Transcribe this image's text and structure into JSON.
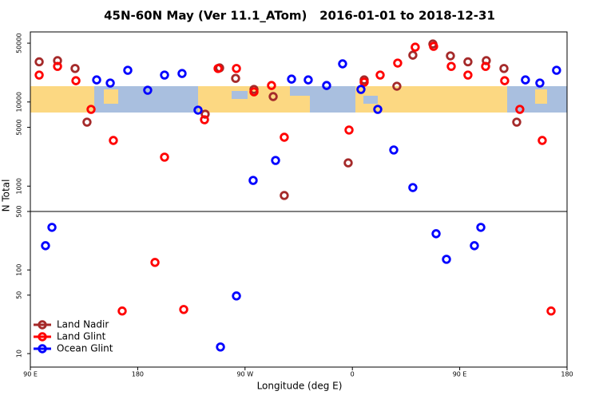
{
  "chart_data": [
    {
      "type": "scatter",
      "title": "45N-60N May (Ver 11.1_ATom)   2016-01-01 to 2018-12-31",
      "y_label": "N Total",
      "log_y": true,
      "xlim": [
        90,
        540
      ],
      "ylim": [
        500,
        68000
      ],
      "yticks": [
        1000,
        5000,
        10000,
        50000
      ],
      "series": [
        {
          "color": "#a52a2a",
          "x": [
            97.4,
            112.8,
            127.5,
            137.5,
            236.6,
            248.7,
            262.1,
            277.5,
            293.6,
            302.9,
            356.5,
            369.9,
            397.3,
            410.7,
            427.5,
            442.2,
            456.9,
            472.3,
            487.1,
            497.8
          ],
          "values": [
            30000,
            31000,
            25000,
            5760,
            7170,
            25400,
            19100,
            14100,
            11600,
            774,
            1890,
            18300,
            15400,
            36000,
            48900,
            35300,
            30000,
            31000,
            25000,
            5760
          ]
        },
        {
          "color": "#ff0000",
          "x": [
            97.4,
            112.8,
            128.2,
            140.9,
            159.6,
            202.5,
            236,
            247.4,
            262.8,
            277.5,
            292.2,
            302.9,
            357.2,
            369.9,
            383.3,
            398,
            412.7,
            428.1,
            442.9,
            456.9,
            471.7,
            487.7,
            500.4,
            519.2
          ],
          "values": [
            20900,
            26500,
            17900,
            8170,
            3490,
            2210,
            6150,
            25000,
            25000,
            13200,
            15700,
            3810,
            4640,
            17200,
            20900,
            29000,
            44800,
            45800,
            26500,
            20900,
            26500,
            17900,
            8170,
            3490
          ]
        },
        {
          "color": "#0000ff",
          "x": [
            145.6,
            157,
            171.7,
            188.4,
            202.5,
            217.2,
            230.6,
            276.8,
            295.6,
            309,
            323,
            338.4,
            351.8,
            367.2,
            381.3,
            394.7,
            410.7,
            505.1,
            517.2,
            531.2
          ],
          "values": [
            18300,
            16800,
            23800,
            13800,
            20900,
            21800,
            8000,
            1170,
            2020,
            18700,
            18300,
            15700,
            28400,
            14100,
            8170,
            2690,
            962,
            18300,
            16800,
            23800
          ]
        }
      ]
    },
    {
      "type": "scatter",
      "x_label": "Longitude (deg E)",
      "log_y": true,
      "legend": "lower-left",
      "xlim": [
        90,
        540
      ],
      "ylim": [
        6.9,
        500
      ],
      "yticks": [
        10,
        50,
        100,
        500
      ],
      "xticks": [
        {
          "value": 90,
          "label": "90 E"
        },
        180,
        {
          "value": 270,
          "label": "90 W"
        },
        {
          "value": 360,
          "label": "0"
        },
        {
          "value": 450,
          "label": "90 E"
        },
        {
          "value": 540,
          "label": "180"
        }
      ],
      "series": [
        {
          "name": "Land Nadir",
          "color": "#a52a2a",
          "x": [],
          "values": []
        },
        {
          "name": "Land Glint",
          "color": "#ff0000",
          "x": [
            167,
            194.5,
            218.6,
            526.6
          ],
          "values": [
            32.3,
            123,
            33.7,
            32.3
          ]
        },
        {
          "name": "Ocean Glint",
          "color": "#0000ff",
          "x": [
            102.7,
            108.1,
            249.4,
            262.8,
            430.2,
            438.9,
            462.3,
            467.7
          ],
          "values": [
            195,
            323,
            12.0,
            48.9,
            271,
            134,
            195,
            323
          ]
        }
      ]
    }
  ]
}
